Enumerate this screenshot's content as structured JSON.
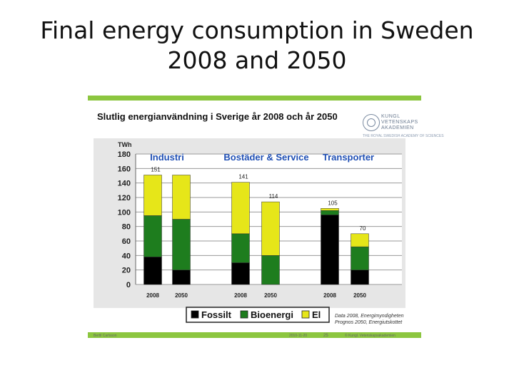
{
  "slide": {
    "title_line1": "Final energy consumption in Sweden",
    "title_line2": "2008 and 2050"
  },
  "panel": {
    "logo_text": "KUNGL VETENSKAPS AKADEMIEN",
    "logo_sub": "THE ROYAL SWEDISH ACADEMY OF SCIENCES",
    "footer_left": "Bertil Carlsson",
    "footer_mid": "2010-11-20",
    "footer_page": "25",
    "footer_right": "© Kungl. Vetenskapsakademien",
    "source_line1": "Data 2008, Energimyndigheten",
    "source_line2": "Prognos 2050, Energiutskottet"
  },
  "chart_data": {
    "type": "bar",
    "title": "Slutlig energianvändning i Sverige år 2008 och år 2050",
    "ylabel": "TWh",
    "ylim": [
      0,
      180
    ],
    "yticks": [
      0,
      20,
      40,
      60,
      80,
      100,
      120,
      140,
      160,
      180
    ],
    "grid": true,
    "stacked": true,
    "legend_position": "bottom",
    "groups": [
      {
        "name": "Industri",
        "color": "#1f4fb4"
      },
      {
        "name": "Bostäder & Service",
        "color": "#1f4fb4"
      },
      {
        "name": "Transporter",
        "color": "#1f4fb4"
      }
    ],
    "categories": [
      "2008",
      "2050",
      "2008",
      "2050",
      "2008",
      "2050"
    ],
    "series": [
      {
        "name": "Fossilt",
        "color": "#000000",
        "values": [
          38,
          20,
          30,
          0,
          96,
          20
        ]
      },
      {
        "name": "Bioenergi",
        "color": "#1e7d1e",
        "values": [
          57,
          70,
          40,
          40,
          6,
          32
        ]
      },
      {
        "name": "El",
        "color": "#e6e619",
        "values": [
          56,
          61,
          71,
          74,
          3,
          18
        ]
      }
    ],
    "totals": [
      "151",
      "",
      "141",
      "114",
      "105",
      "70"
    ]
  }
}
